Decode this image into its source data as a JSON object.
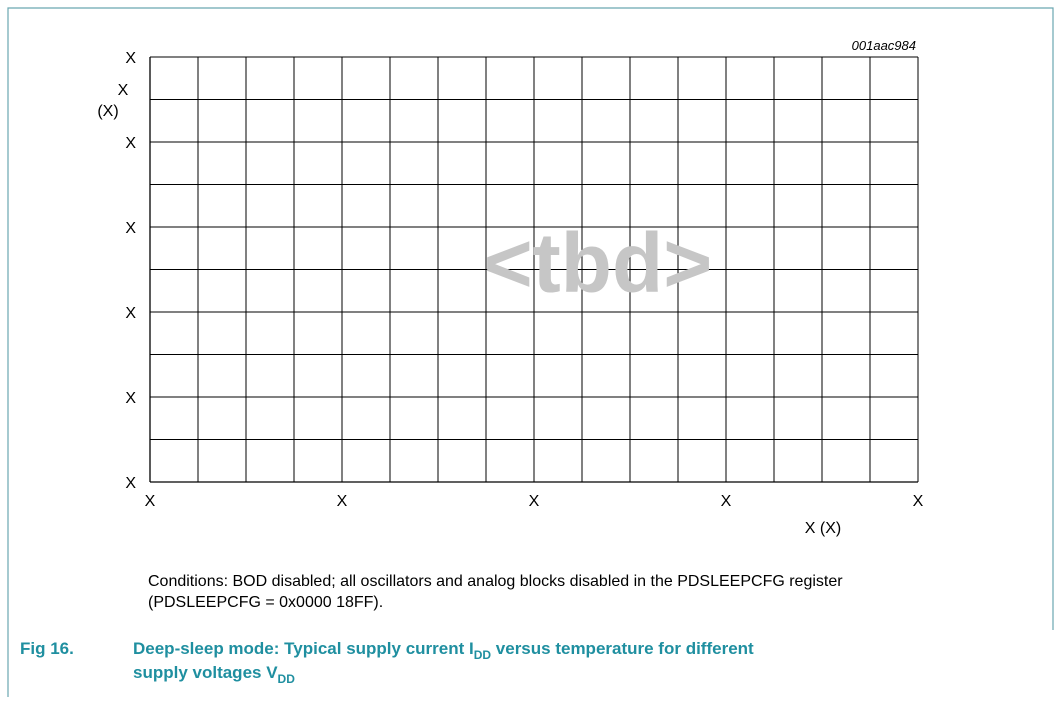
{
  "figure": {
    "code": "001aac984",
    "y_axis_label": [
      "X",
      "(X)"
    ],
    "y_tick_labels": [
      "X",
      "X",
      "X",
      "X",
      "X",
      "X"
    ],
    "x_tick_labels": [
      "X",
      "X",
      "X",
      "X",
      "X"
    ],
    "x_axis_label": "X (X)",
    "watermark": "<tbd>",
    "conditions": [
      "Conditions: BOD disabled; all oscillators and analog blocks disabled in the PDSLEEPCFG register",
      "(PDSLEEPCFG = 0x0000 18FF)."
    ],
    "caption": {
      "number": "Fig 16.",
      "parts": [
        "Deep-sleep mode: Typical supply current I",
        "DD",
        " versus temperature for different",
        "supply voltages V",
        "DD"
      ]
    }
  }
}
